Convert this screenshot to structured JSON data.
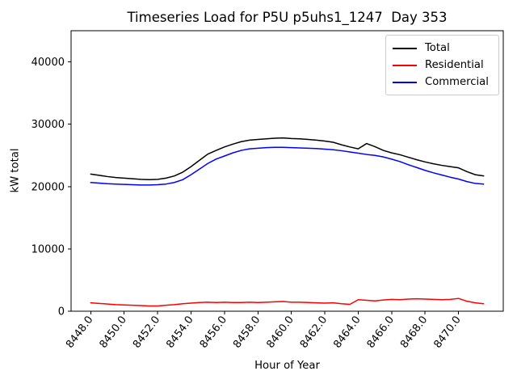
{
  "figure": {
    "title": "Timeseries Load for P5U p5uhs1_1247  Day 353",
    "background_color": "#ffffff",
    "spine_color": "#000000",
    "legend_border_color": "#cccccc"
  },
  "chart_data": {
    "type": "line",
    "title": "Timeseries Load for P5U p5uhs1_1247  Day 353",
    "xlabel": "Hour of Year",
    "ylabel": "kW total",
    "xlim": [
      8446.825,
      8472.675
    ],
    "ylim": [
      0,
      45000
    ],
    "grid": false,
    "legend_position": "upper right",
    "xtick_values": [
      8448,
      8450,
      8452,
      8454,
      8456,
      8458,
      8460,
      8462,
      8464,
      8466,
      8468,
      8470
    ],
    "xtick_labels": [
      "8448.0",
      "8450.0",
      "8452.0",
      "8454.0",
      "8456.0",
      "8458.0",
      "8460.0",
      "8462.0",
      "8464.0",
      "8466.0",
      "8468.0",
      "8470.0"
    ],
    "xtick_rotation_deg": -53,
    "ytick_values": [
      0,
      10000,
      20000,
      30000,
      40000
    ],
    "ytick_labels": [
      "0",
      "10000",
      "20000",
      "30000",
      "40000"
    ],
    "x": [
      8448.0,
      8448.5,
      8449.0,
      8449.5,
      8450.0,
      8450.5,
      8451.0,
      8451.5,
      8452.0,
      8452.5,
      8453.0,
      8453.5,
      8454.0,
      8454.5,
      8455.0,
      8455.5,
      8456.0,
      8456.5,
      8457.0,
      8457.5,
      8458.0,
      8458.5,
      8459.0,
      8459.5,
      8460.0,
      8460.5,
      8461.0,
      8461.5,
      8462.0,
      8462.5,
      8463.0,
      8463.5,
      8464.0,
      8464.5,
      8465.0,
      8465.5,
      8466.0,
      8466.5,
      8467.0,
      8467.5,
      8468.0,
      8468.5,
      8469.0,
      8469.5,
      8470.0,
      8470.5,
      8471.0,
      8471.5
    ],
    "series": [
      {
        "name": "Total",
        "color": "#000000",
        "values": [
          22000,
          21800,
          21600,
          21450,
          21350,
          21250,
          21150,
          21100,
          21150,
          21350,
          21700,
          22300,
          23200,
          24200,
          25200,
          25800,
          26350,
          26800,
          27200,
          27450,
          27550,
          27650,
          27750,
          27800,
          27700,
          27650,
          27550,
          27450,
          27300,
          27100,
          26700,
          26350,
          26050,
          26900,
          26400,
          25800,
          25400,
          25100,
          24700,
          24300,
          23950,
          23650,
          23400,
          23200,
          23000,
          22400,
          21900,
          21700
        ]
      },
      {
        "name": "Residential",
        "color": "#ff0000",
        "values": [
          1350,
          1250,
          1150,
          1050,
          1000,
          950,
          900,
          850,
          850,
          950,
          1050,
          1200,
          1300,
          1400,
          1450,
          1400,
          1450,
          1400,
          1400,
          1450,
          1400,
          1450,
          1500,
          1550,
          1450,
          1450,
          1400,
          1350,
          1300,
          1350,
          1200,
          1100,
          1850,
          1750,
          1650,
          1800,
          1900,
          1850,
          1950,
          2000,
          1950,
          1900,
          1850,
          1900,
          2050,
          1600,
          1350,
          1200
        ]
      },
      {
        "name": "Commercial",
        "color": "#0000ff",
        "values": [
          20650,
          20550,
          20450,
          20400,
          20350,
          20300,
          20250,
          20250,
          20300,
          20400,
          20650,
          21100,
          21900,
          22800,
          23700,
          24400,
          24900,
          25400,
          25800,
          26050,
          26150,
          26250,
          26300,
          26300,
          26250,
          26200,
          26150,
          26100,
          26000,
          25900,
          25750,
          25550,
          25350,
          25150,
          25000,
          24750,
          24400,
          24000,
          23500,
          23050,
          22600,
          22200,
          21850,
          21500,
          21200,
          20800,
          20500,
          20400
        ]
      }
    ]
  }
}
